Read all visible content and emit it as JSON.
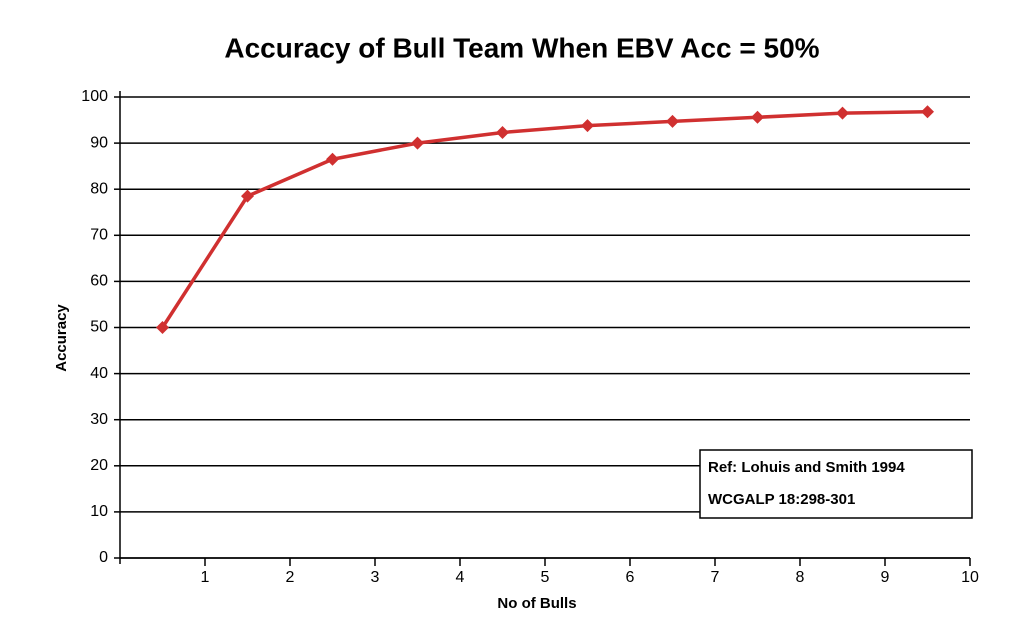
{
  "chart_data": {
    "type": "line",
    "title": "Accuracy of Bull Team When EBV Acc = 50%",
    "x_label": "No of Bulls",
    "y_label": "Accuracy",
    "x": [
      0.5,
      1.5,
      2.5,
      3.5,
      4.5,
      5.5,
      6.5,
      7.5,
      8.5,
      9.5
    ],
    "values": [
      50,
      78.5,
      86.5,
      90,
      92.3,
      93.8,
      94.7,
      95.6,
      96.5,
      96.8
    ],
    "color": "#d03030",
    "xlim": [
      0,
      10
    ],
    "xticks": [
      1,
      2,
      3,
      4,
      5,
      6,
      7,
      8,
      9,
      10
    ],
    "ylim": [
      0,
      100
    ],
    "yticks": [
      0,
      10,
      20,
      30,
      40,
      50,
      60,
      70,
      80,
      90,
      100
    ],
    "grid": true,
    "annotation": [
      "Ref: Lohuis and Smith 1994",
      "WCGALP 18:298-301"
    ]
  }
}
